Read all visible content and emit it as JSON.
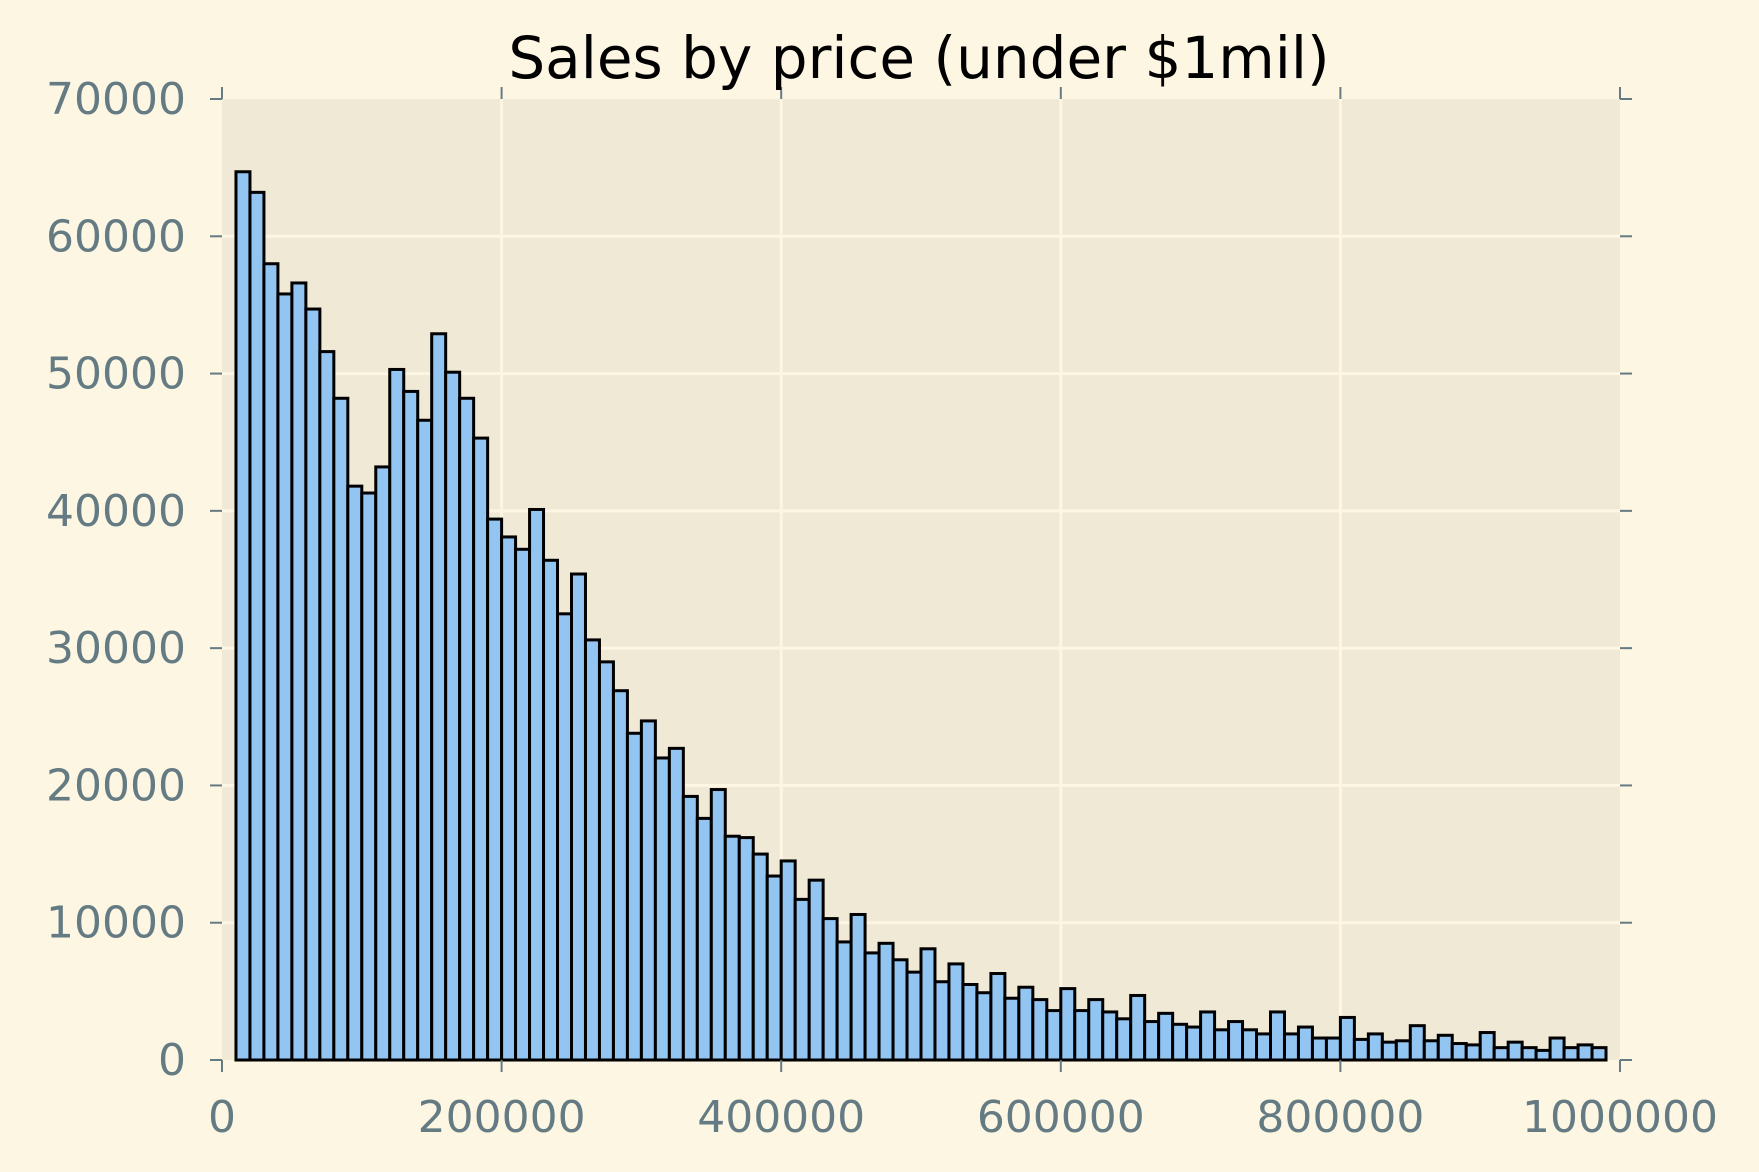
{
  "chart_data": {
    "type": "bar",
    "title": "Sales by price (under $1mil)",
    "xlabel": "",
    "ylabel": "",
    "xlim": [
      0,
      1000000
    ],
    "ylim": [
      0,
      70000
    ],
    "x_ticks": [
      0,
      200000,
      400000,
      600000,
      800000,
      1000000
    ],
    "x_tick_labels": [
      "0",
      "200000",
      "400000",
      "600000",
      "800000",
      "1000000"
    ],
    "y_ticks": [
      0,
      10000,
      20000,
      30000,
      40000,
      50000,
      60000,
      70000
    ],
    "y_tick_labels": [
      "0",
      "10000",
      "20000",
      "30000",
      "40000",
      "50000",
      "60000",
      "70000"
    ],
    "grid": true,
    "bin_start": 10000,
    "bin_width": 10000,
    "values": [
      64700,
      63200,
      58000,
      55800,
      56600,
      54700,
      51600,
      48200,
      41800,
      41300,
      43200,
      50300,
      48700,
      46600,
      52900,
      50100,
      48200,
      45300,
      39400,
      38100,
      37200,
      40100,
      36400,
      32500,
      35400,
      30600,
      29000,
      26900,
      23800,
      24700,
      22000,
      22700,
      19200,
      17600,
      19700,
      16300,
      16200,
      15000,
      13400,
      14500,
      11700,
      13100,
      10300,
      8600,
      10600,
      7800,
      8500,
      7300,
      6400,
      8100,
      5700,
      7000,
      5500,
      4900,
      6300,
      4500,
      5300,
      4400,
      3600,
      5200,
      3600,
      4400,
      3500,
      3000,
      4700,
      2800,
      3400,
      2600,
      2400,
      3500,
      2200,
      2800,
      2200,
      1900,
      3500,
      1900,
      2400,
      1600,
      1600,
      3100,
      1500,
      1900,
      1300,
      1400,
      2500,
      1400,
      1800,
      1200,
      1100,
      2000,
      900,
      1300,
      900,
      700,
      1600,
      900,
      1100,
      900
    ],
    "colors": {
      "figure_background": "#fdf6e3",
      "plot_background": "#f0e9d6",
      "grid": "#fdf6e3",
      "bar_fill": "#93c5f3",
      "bar_edge": "#000000",
      "tick_color": "#657b83",
      "title_color": "#000000"
    }
  }
}
